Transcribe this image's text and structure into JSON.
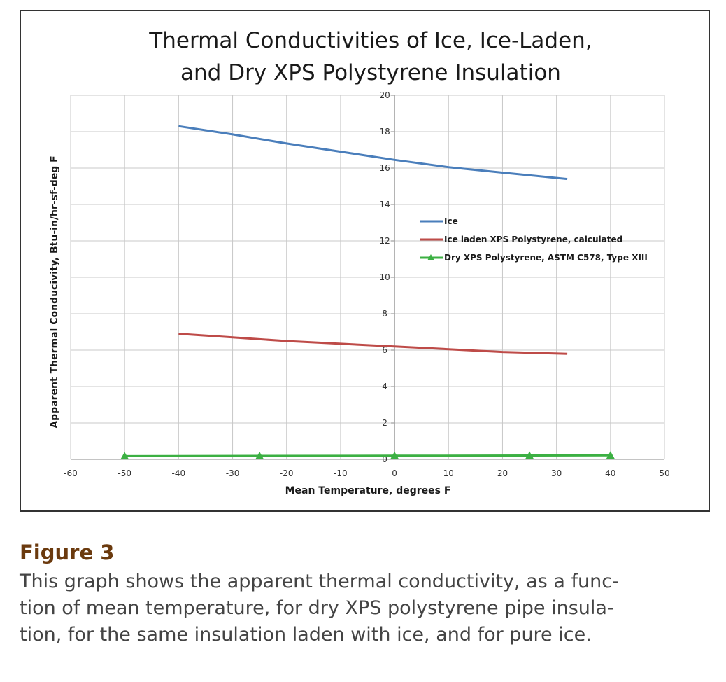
{
  "chart_data": {
    "type": "line",
    "title_lines": [
      "Thermal Conductivities of Ice, Ice-Laden,",
      "and Dry XPS Polystyrene Insulation"
    ],
    "xlabel": "Mean Temperature, degrees F",
    "ylabel": "Apparent Thermal Conducivity, Btu-in/hr-sf-deg F",
    "xlim": [
      -60,
      50
    ],
    "ylim": [
      0,
      20
    ],
    "x_ticks": [
      -60,
      -50,
      -40,
      -30,
      -20,
      -10,
      0,
      10,
      20,
      30,
      40,
      50
    ],
    "y_ticks": [
      0,
      2,
      4,
      6,
      8,
      10,
      12,
      14,
      16,
      18,
      20
    ],
    "grid": true,
    "legend_placement": "center-right",
    "series": [
      {
        "name": "Ice",
        "color": "#4a7ebb",
        "marker": "none",
        "points": [
          [
            -40,
            18.3
          ],
          [
            -30,
            17.85
          ],
          [
            -20,
            17.35
          ],
          [
            -10,
            16.9
          ],
          [
            0,
            16.45
          ],
          [
            10,
            16.05
          ],
          [
            20,
            15.75
          ],
          [
            32,
            15.4
          ]
        ]
      },
      {
        "name": "Ice laden XPS Polystyrene, calculated",
        "color": "#be4b48",
        "marker": "none",
        "points": [
          [
            -40,
            6.9
          ],
          [
            -30,
            6.7
          ],
          [
            -20,
            6.5
          ],
          [
            -10,
            6.35
          ],
          [
            0,
            6.2
          ],
          [
            10,
            6.05
          ],
          [
            20,
            5.9
          ],
          [
            32,
            5.8
          ]
        ]
      },
      {
        "name": "Dry XPS Polystyrene, ASTM C578, Type XIII",
        "color": "#3cb043",
        "marker": "triangle",
        "points": [
          [
            -50,
            0.18
          ],
          [
            -25,
            0.19
          ],
          [
            0,
            0.2
          ],
          [
            25,
            0.21
          ],
          [
            40,
            0.22
          ]
        ]
      }
    ]
  },
  "caption": {
    "label": "Figure 3",
    "lines": [
      "This graph shows the apparent thermal conductivity, as a func-",
      "tion of mean temperature, for dry XPS polystyrene pipe insula-",
      "tion, for the same insulation laden with ice, and for pure ice."
    ]
  }
}
